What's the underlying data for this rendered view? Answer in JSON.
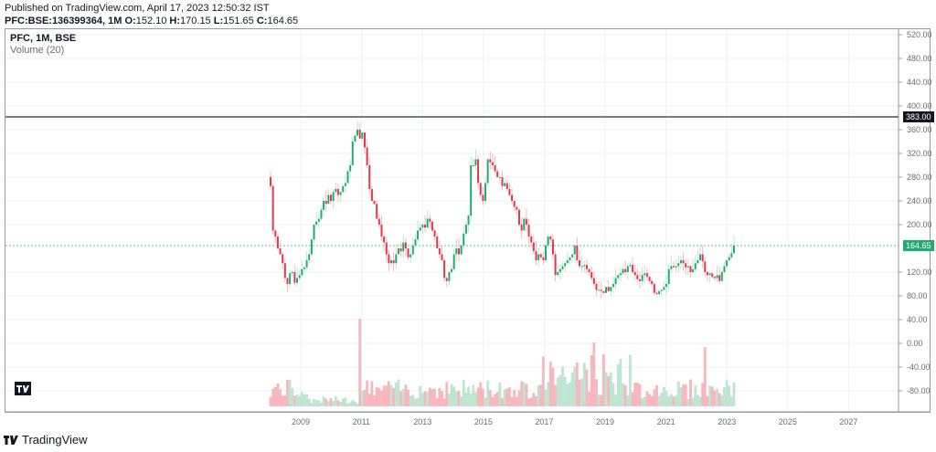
{
  "header": {
    "published": "Published on TradingView.com, April 17, 2023 12:50:32 IST",
    "symbol": "PFC:BSE:136399364, 1M",
    "o_label": "O:",
    "o": "152.10",
    "h_label": "H:",
    "h": "170.15",
    "l_label": "L:",
    "l": "151.65",
    "c_label": "C:",
    "c": "164.65"
  },
  "legend": {
    "main": "PFC, 1M, BSE",
    "volume": "Volume (20)"
  },
  "price_badges": {
    "horizontal_line": "383.00",
    "last_price": "164.65"
  },
  "footer": {
    "brand": "TradingView"
  },
  "colors": {
    "up": "#26a69a",
    "up_candle": "#22ab70",
    "down": "#e5374a",
    "vol_up": "#bfe4d2",
    "vol_down": "#f6b7bd",
    "grid": "#eef2f6",
    "last_line": "#22ab70",
    "hline": "#787b86"
  },
  "chart_data": {
    "type": "candlestick",
    "title": "PFC, 1M, BSE",
    "interval": "1M",
    "y_ticks": [
      "520.00",
      "480.00",
      "440.00",
      "400.00",
      "360.00",
      "320.00",
      "280.00",
      "240.00",
      "200.00",
      "120.00",
      "80.00",
      "40.00",
      "0.00",
      "-40.00",
      "-80.00"
    ],
    "x_ticks": [
      "2009",
      "2011",
      "2013",
      "2015",
      "2017",
      "2019",
      "2021",
      "2023",
      "2025",
      "2027"
    ],
    "horizontal_line": 383.0,
    "last_close": 164.65,
    "start": "2008-03",
    "closes": [
      265,
      190,
      180,
      160,
      150,
      135,
      110,
      100,
      118,
      120,
      102,
      110,
      115,
      125,
      128,
      140,
      150,
      175,
      200,
      205,
      210,
      225,
      240,
      235,
      250,
      240,
      255,
      260,
      250,
      255,
      265,
      270,
      290,
      300,
      340,
      350,
      360,
      345,
      355,
      330,
      300,
      260,
      240,
      235,
      210,
      200,
      180,
      170,
      150,
      135,
      140,
      135,
      150,
      160,
      155,
      170,
      160,
      145,
      150,
      165,
      175,
      190,
      195,
      200,
      195,
      210,
      205,
      190,
      180,
      160,
      150,
      140,
      110,
      105,
      120,
      125,
      150,
      160,
      150,
      165,
      185,
      200,
      215,
      300,
      300,
      310,
      270,
      250,
      240,
      270,
      310,
      305,
      300,
      290,
      280,
      280,
      265,
      270,
      260,
      250,
      240,
      230,
      225,
      200,
      190,
      210,
      200,
      180,
      170,
      155,
      140,
      150,
      145,
      140,
      165,
      180,
      175,
      150,
      115,
      120,
      125,
      130,
      135,
      140,
      145,
      150,
      165,
      140,
      130,
      130,
      132,
      125,
      120,
      110,
      100,
      90,
      90,
      88,
      85,
      95,
      88,
      95,
      100,
      110,
      115,
      118,
      125,
      120,
      130,
      132,
      120,
      115,
      108,
      105,
      115,
      118,
      112,
      105,
      100,
      85,
      83,
      88,
      90,
      95,
      100,
      125,
      130,
      128,
      130,
      135,
      140,
      135,
      128,
      130,
      120,
      125,
      135,
      140,
      150,
      138,
      120,
      115,
      118,
      112,
      110,
      115,
      105,
      120,
      130,
      140,
      145,
      152,
      164.65
    ],
    "volume_note": "Volume (20) subpane, bars colored by candle direction"
  }
}
